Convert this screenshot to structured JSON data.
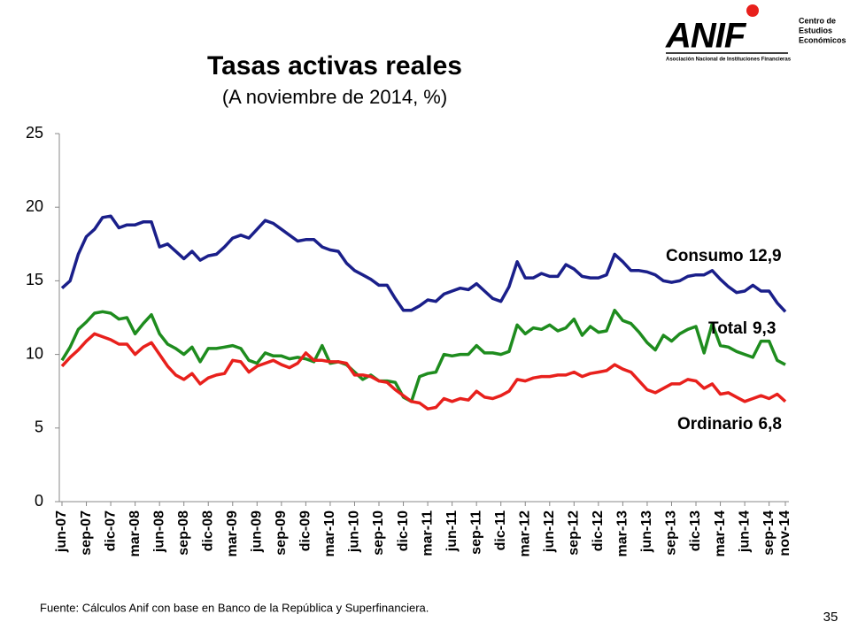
{
  "chart_data": {
    "type": "line",
    "title": "Tasas activas reales",
    "subtitle": "(A noviembre de 2014, %)",
    "categories": [
      "jun-07",
      null,
      null,
      "sep-07",
      null,
      null,
      "dic-07",
      null,
      null,
      "mar-08",
      null,
      null,
      "jun-08",
      null,
      null,
      "sep-08",
      null,
      null,
      "dic-08",
      null,
      null,
      "mar-09",
      null,
      null,
      "jun-09",
      null,
      null,
      "sep-09",
      null,
      null,
      "dic-09",
      null,
      null,
      "mar-10",
      null,
      null,
      "jun-10",
      null,
      null,
      "sep-10",
      null,
      null,
      "dic-10",
      null,
      null,
      "mar-11",
      null,
      null,
      "jun-11",
      null,
      null,
      "sep-11",
      null,
      null,
      "dic-11",
      null,
      null,
      "mar-12",
      null,
      null,
      "jun-12",
      null,
      null,
      "sep-12",
      null,
      null,
      "dic-12",
      null,
      null,
      "mar-13",
      null,
      null,
      "jun-13",
      null,
      null,
      "sep-13",
      null,
      null,
      "dic-13",
      null,
      null,
      "mar-14",
      null,
      null,
      "jun-14",
      null,
      null,
      "sep-14",
      null,
      "nov-14"
    ],
    "series": [
      {
        "name": "Consumo",
        "last_label": "12,9",
        "color": "#1a1f8a",
        "values": [
          14.5,
          15.0,
          16.8,
          18.0,
          18.5,
          19.3,
          19.4,
          18.6,
          18.8,
          18.8,
          19.0,
          19.0,
          17.3,
          17.5,
          17.0,
          16.5,
          17.0,
          16.4,
          16.7,
          16.8,
          17.3,
          17.9,
          18.1,
          17.9,
          18.5,
          19.1,
          18.9,
          18.5,
          18.1,
          17.7,
          17.8,
          17.8,
          17.3,
          17.1,
          17.0,
          16.2,
          15.7,
          15.4,
          15.1,
          14.7,
          14.7,
          13.8,
          13.0,
          13.0,
          13.3,
          13.7,
          13.6,
          14.1,
          14.3,
          14.5,
          14.4,
          14.8,
          14.3,
          13.8,
          13.6,
          14.6,
          16.3,
          15.2,
          15.2,
          15.5,
          15.3,
          15.3,
          16.1,
          15.8,
          15.3,
          15.2,
          15.2,
          15.4,
          16.8,
          16.3,
          15.7,
          15.7,
          15.6,
          15.4,
          15.0,
          14.9,
          15.0,
          15.3,
          15.4,
          15.4,
          15.7,
          15.1,
          14.6,
          14.2,
          14.3,
          14.7,
          14.3,
          14.3,
          13.5,
          12.9
        ]
      },
      {
        "name": "Total",
        "last_label": "9,3",
        "color": "#1e8c1e",
        "values": [
          9.6,
          10.5,
          11.7,
          12.2,
          12.8,
          12.9,
          12.8,
          12.4,
          12.5,
          11.4,
          12.1,
          12.7,
          11.4,
          10.7,
          10.4,
          10.0,
          10.5,
          9.5,
          10.4,
          10.4,
          10.5,
          10.6,
          10.4,
          9.6,
          9.4,
          10.1,
          9.9,
          9.9,
          9.7,
          9.8,
          9.7,
          9.5,
          10.6,
          9.4,
          9.5,
          9.3,
          8.8,
          8.3,
          8.6,
          8.2,
          8.2,
          8.1,
          7.1,
          6.8,
          8.5,
          8.7,
          8.8,
          10.0,
          9.9,
          10.0,
          10.0,
          10.6,
          10.1,
          10.1,
          10.0,
          10.2,
          12.0,
          11.4,
          11.8,
          11.7,
          12.0,
          11.6,
          11.8,
          12.4,
          11.3,
          11.9,
          11.5,
          11.6,
          13.0,
          12.3,
          12.1,
          11.5,
          10.8,
          10.3,
          11.3,
          10.9,
          11.4,
          11.7,
          11.9,
          10.1,
          12.1,
          10.6,
          10.5,
          10.2,
          10.0,
          9.8,
          10.9,
          10.9,
          9.6,
          9.3
        ]
      },
      {
        "name": "Ordinario",
        "last_label": "6,8",
        "color": "#e8201c",
        "values": [
          9.2,
          9.8,
          10.3,
          10.9,
          11.4,
          11.2,
          11.0,
          10.7,
          10.7,
          10.0,
          10.5,
          10.8,
          10.0,
          9.2,
          8.6,
          8.3,
          8.7,
          8.0,
          8.4,
          8.6,
          8.7,
          9.6,
          9.5,
          8.8,
          9.2,
          9.4,
          9.6,
          9.3,
          9.1,
          9.4,
          10.1,
          9.6,
          9.6,
          9.5,
          9.5,
          9.4,
          8.6,
          8.6,
          8.5,
          8.2,
          8.1,
          7.6,
          7.2,
          6.8,
          6.7,
          6.3,
          6.4,
          7.0,
          6.8,
          7.0,
          6.9,
          7.5,
          7.1,
          7.0,
          7.2,
          7.5,
          8.3,
          8.2,
          8.4,
          8.5,
          8.5,
          8.6,
          8.6,
          8.8,
          8.5,
          8.7,
          8.8,
          8.9,
          9.3,
          9.0,
          8.8,
          8.2,
          7.6,
          7.4,
          7.7,
          8.0,
          8.0,
          8.3,
          8.2,
          7.7,
          8.0,
          7.3,
          7.4,
          7.1,
          6.8,
          7.0,
          7.2,
          7.0,
          7.3,
          6.8
        ]
      }
    ],
    "ylim": [
      0,
      25
    ],
    "yticks": [
      0,
      5,
      10,
      15,
      20,
      25
    ],
    "grid": false
  },
  "logo": {
    "mark": "ANIF",
    "name": "Asociación Nacional de Instituciones Financieras",
    "unit": [
      "Centro de",
      "Estudios",
      "Económicos"
    ]
  },
  "source": "Fuente: Cálculos Anif con base en Banco de la República y Superfinanciera.",
  "page_number": "35"
}
